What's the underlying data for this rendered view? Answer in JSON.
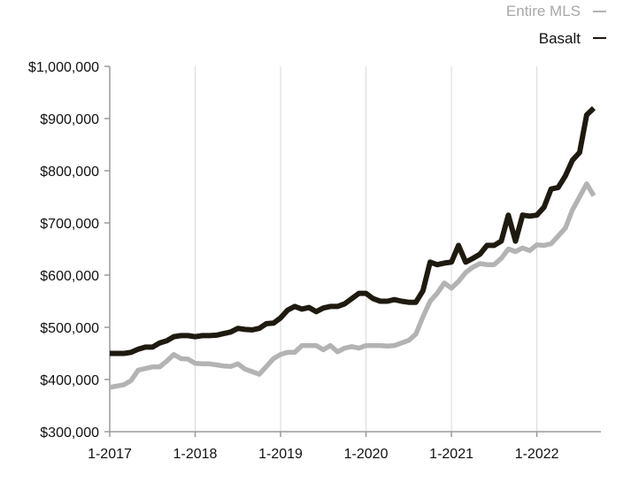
{
  "chart_data": {
    "type": "line",
    "title": "",
    "xlabel": "",
    "ylabel": "",
    "x_tick_labels": [
      "1-2017",
      "1-2018",
      "1-2019",
      "1-2020",
      "1-2021",
      "1-2022"
    ],
    "y_tick_labels": [
      "$300,000",
      "$400,000",
      "$500,000",
      "$600,000",
      "$700,000",
      "$800,000",
      "$900,000",
      "$1,000,000"
    ],
    "ylim": [
      300000,
      1000000
    ],
    "xlim_months": [
      0,
      69
    ],
    "grid": "vertical only",
    "legend_position": "top-right",
    "series": [
      {
        "name": "Entire MLS",
        "color": "#b3b3b3",
        "points": [
          [
            0,
            385000
          ],
          [
            2,
            390000
          ],
          [
            3,
            398000
          ],
          [
            4,
            418000
          ],
          [
            5,
            421000
          ],
          [
            6,
            424000
          ],
          [
            7,
            424000
          ],
          [
            8,
            435000
          ],
          [
            9,
            448000
          ],
          [
            10,
            440000
          ],
          [
            11,
            439000
          ],
          [
            12,
            431000
          ],
          [
            13,
            430000
          ],
          [
            14,
            430000
          ],
          [
            15,
            428000
          ],
          [
            16,
            426000
          ],
          [
            17,
            425000
          ],
          [
            18,
            430000
          ],
          [
            19,
            420000
          ],
          [
            20,
            415000
          ],
          [
            21,
            410000
          ],
          [
            22,
            425000
          ],
          [
            23,
            440000
          ],
          [
            24,
            448000
          ],
          [
            25,
            452000
          ],
          [
            26,
            452000
          ],
          [
            27,
            465000
          ],
          [
            28,
            465000
          ],
          [
            29,
            465000
          ],
          [
            30,
            457000
          ],
          [
            31,
            465000
          ],
          [
            32,
            453000
          ],
          [
            33,
            460000
          ],
          [
            34,
            463000
          ],
          [
            35,
            460000
          ],
          [
            36,
            465000
          ],
          [
            37,
            465000
          ],
          [
            38,
            465000
          ],
          [
            39,
            464000
          ],
          [
            40,
            465000
          ],
          [
            41,
            470000
          ],
          [
            42,
            475000
          ],
          [
            43,
            487000
          ],
          [
            44,
            520000
          ],
          [
            45,
            550000
          ],
          [
            46,
            565000
          ],
          [
            47,
            585000
          ],
          [
            48,
            575000
          ],
          [
            49,
            588000
          ],
          [
            50,
            605000
          ],
          [
            51,
            615000
          ],
          [
            52,
            622000
          ],
          [
            53,
            620000
          ],
          [
            54,
            620000
          ],
          [
            55,
            632000
          ],
          [
            56,
            650000
          ],
          [
            57,
            645000
          ],
          [
            58,
            652000
          ],
          [
            59,
            647000
          ],
          [
            60,
            658000
          ],
          [
            61,
            657000
          ],
          [
            62,
            660000
          ],
          [
            63,
            675000
          ],
          [
            64,
            690000
          ],
          [
            65,
            725000
          ],
          [
            66,
            750000
          ],
          [
            67,
            775000
          ],
          [
            68,
            752000
          ]
        ]
      },
      {
        "name": "Basalt",
        "color": "#1f1a10",
        "points": [
          [
            0,
            450000
          ],
          [
            2,
            450000
          ],
          [
            3,
            452000
          ],
          [
            4,
            458000
          ],
          [
            5,
            462000
          ],
          [
            6,
            462000
          ],
          [
            7,
            470000
          ],
          [
            8,
            474000
          ],
          [
            9,
            482000
          ],
          [
            10,
            484000
          ],
          [
            11,
            484000
          ],
          [
            12,
            482000
          ],
          [
            13,
            484000
          ],
          [
            14,
            484000
          ],
          [
            15,
            485000
          ],
          [
            16,
            488000
          ],
          [
            17,
            491000
          ],
          [
            18,
            498000
          ],
          [
            19,
            496000
          ],
          [
            20,
            495000
          ],
          [
            21,
            498000
          ],
          [
            22,
            507000
          ],
          [
            23,
            508000
          ],
          [
            24,
            518000
          ],
          [
            25,
            533000
          ],
          [
            26,
            540000
          ],
          [
            27,
            535000
          ],
          [
            28,
            538000
          ],
          [
            29,
            530000
          ],
          [
            30,
            537000
          ],
          [
            31,
            540000
          ],
          [
            32,
            540000
          ],
          [
            33,
            545000
          ],
          [
            34,
            555000
          ],
          [
            35,
            565000
          ],
          [
            36,
            565000
          ],
          [
            37,
            555000
          ],
          [
            38,
            550000
          ],
          [
            39,
            550000
          ],
          [
            40,
            553000
          ],
          [
            41,
            550000
          ],
          [
            42,
            548000
          ],
          [
            43,
            548000
          ],
          [
            44,
            570000
          ],
          [
            45,
            625000
          ],
          [
            46,
            620000
          ],
          [
            47,
            623000
          ],
          [
            48,
            625000
          ],
          [
            49,
            657000
          ],
          [
            50,
            625000
          ],
          [
            51,
            632000
          ],
          [
            52,
            640000
          ],
          [
            53,
            657000
          ],
          [
            54,
            657000
          ],
          [
            55,
            665000
          ],
          [
            56,
            715000
          ],
          [
            57,
            665000
          ],
          [
            58,
            715000
          ],
          [
            59,
            713000
          ],
          [
            60,
            715000
          ],
          [
            61,
            730000
          ],
          [
            62,
            765000
          ],
          [
            63,
            768000
          ],
          [
            64,
            790000
          ],
          [
            65,
            820000
          ],
          [
            66,
            835000
          ],
          [
            67,
            907000
          ],
          [
            68,
            920000
          ]
        ]
      }
    ]
  }
}
